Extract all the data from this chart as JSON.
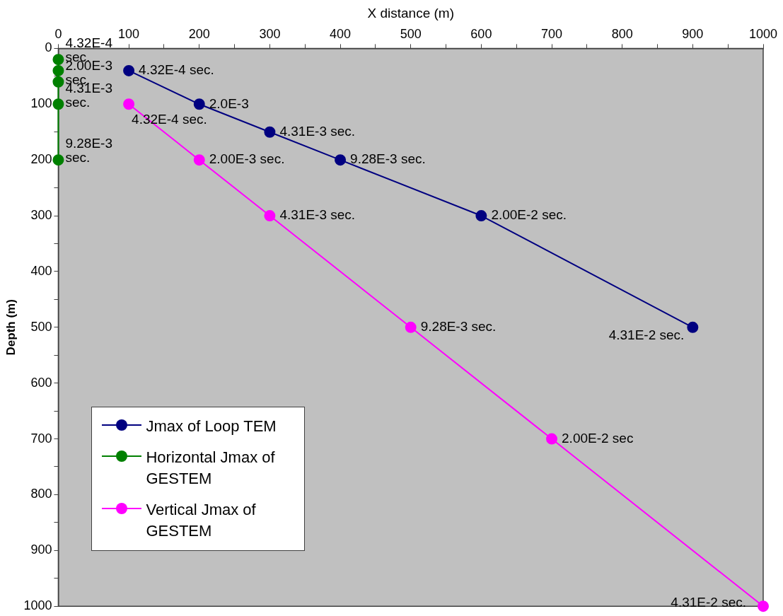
{
  "chart_data": {
    "type": "line",
    "xlabel": "X distance (m)",
    "ylabel": "Depth (m)",
    "xlim": [
      0,
      1000
    ],
    "ylim": [
      1000,
      0
    ],
    "xticks": [
      0,
      {
        "value": 50,
        "label": null
      },
      100,
      {
        "value": 150,
        "label": null
      },
      200,
      {
        "value": 250,
        "label": null
      },
      300,
      {
        "value": 350,
        "label": null
      },
      400,
      {
        "value": 450,
        "label": null
      },
      500,
      {
        "value": 550,
        "label": null
      },
      600,
      {
        "value": 650,
        "label": null
      },
      700,
      {
        "value": 750,
        "label": null
      },
      800,
      {
        "value": 850,
        "label": null
      },
      900,
      {
        "value": 950,
        "label": null
      },
      1000
    ],
    "yticks": [
      0,
      {
        "value": 50,
        "label": null
      },
      100,
      {
        "value": 150,
        "label": null
      },
      200,
      {
        "value": 250,
        "label": null
      },
      300,
      {
        "value": 350,
        "label": null
      },
      400,
      {
        "value": 450,
        "label": null
      },
      500,
      {
        "value": 550,
        "label": null
      },
      600,
      {
        "value": 650,
        "label": null
      },
      700,
      {
        "value": 750,
        "label": null
      },
      800,
      {
        "value": 850,
        "label": null
      },
      900,
      {
        "value": 950,
        "label": null
      },
      1000
    ],
    "grid": false,
    "legend": "bottom left",
    "marker": "circle",
    "line_style": "solid",
    "series": [
      {
        "name": "Jmax of Loop TEM",
        "color": "#000080",
        "x": [
          100,
          200,
          300,
          400,
          600,
          900
        ],
        "values": [
          40,
          100,
          150,
          200,
          300,
          500
        ]
      },
      {
        "name": "Horizontal Jmax of GESTEM",
        "color": "#008000",
        "x": [
          0,
          0,
          0,
          0,
          0
        ],
        "values": [
          20,
          40,
          60,
          100,
          200
        ]
      },
      {
        "name": "Vertical Jmax of GESTEM",
        "color": "#ff00ff",
        "x": [
          100,
          200,
          300,
          500,
          700,
          1000
        ],
        "values": [
          100,
          200,
          300,
          500,
          700,
          1000
        ]
      }
    ],
    "annotations": [
      {
        "text": "4.32E-4 sec.",
        "x": 100,
        "y": 40
      },
      {
        "text": "2.0E-3",
        "x": 200,
        "y": 100
      },
      {
        "text": "4.31E-3 sec.",
        "x": 300,
        "y": 150
      },
      {
        "text": "9.28E-3 sec.",
        "x": 400,
        "y": 200
      },
      {
        "text": "2.00E-2 sec.",
        "x": 600,
        "y": 300
      },
      {
        "text": "4.31E-2 sec.",
        "x": 900,
        "y": 500
      },
      {
        "text": "4.32E-4 sec.",
        "x": 0,
        "y": 20
      },
      {
        "text": "2.00E-3 sec.",
        "x": 0,
        "y": 60
      },
      {
        "text": "4.31E-3 sec.",
        "x": 0,
        "y": 100
      },
      {
        "text": "9.28E-3 sec.",
        "x": 0,
        "y": 200
      },
      {
        "text": "4.32E-4 sec.",
        "x": 100,
        "y": 100
      },
      {
        "text": "2.00E-3 sec.",
        "x": 200,
        "y": 200
      },
      {
        "text": "4.31E-3 sec.",
        "x": 300,
        "y": 300
      },
      {
        "text": "9.28E-3 sec.",
        "x": 500,
        "y": 500
      },
      {
        "text": "2.00E-2 sec",
        "x": 700,
        "y": 700
      },
      {
        "text": "4.31E-2 sec.",
        "x": 1000,
        "y": 1000
      }
    ]
  }
}
